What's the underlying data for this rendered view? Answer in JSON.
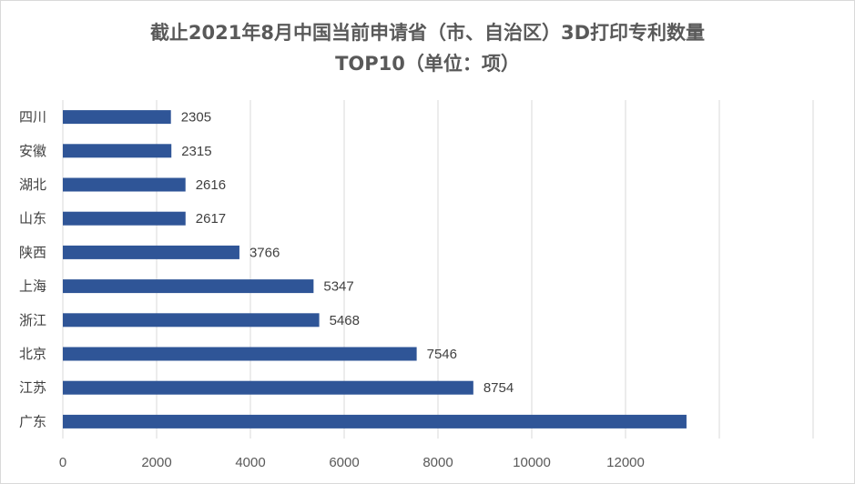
{
  "chart_data": {
    "type": "bar",
    "orientation": "horizontal",
    "title_line1": "截止2021年8月中国当前申请省（市、自治区）3D打印专利数量",
    "title_line2": "TOP10（单位：项）",
    "categories": [
      "四川",
      "安徽",
      "湖北",
      "山东",
      "陕西",
      "上海",
      "浙江",
      "北京",
      "江苏",
      "广东"
    ],
    "values": [
      2305,
      2315,
      2616,
      2617,
      3766,
      5347,
      5468,
      7546,
      8754,
      13300
    ],
    "value_labels": [
      "2305",
      "2315",
      "2616",
      "2617",
      "3766",
      "5347",
      "5468",
      "7546",
      "8754",
      ""
    ],
    "x_ticks": [
      0,
      2000,
      4000,
      6000,
      8000,
      10000,
      12000
    ],
    "xlim": [
      0,
      16000
    ],
    "grid": "vertical",
    "legend": "none",
    "bar_color": "#2f5597"
  }
}
